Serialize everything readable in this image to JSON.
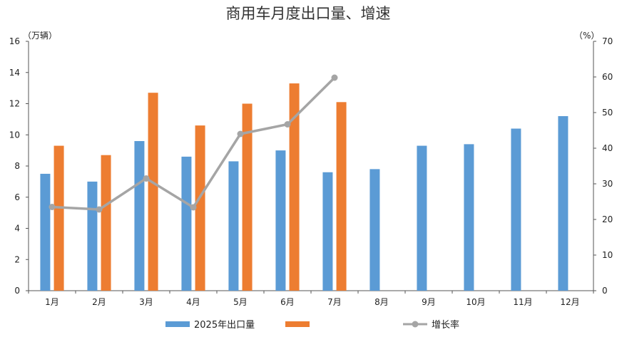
{
  "chart_data": {
    "type": "bar",
    "title": "商用车月度出口量、增速",
    "left_unit": "（万辆）",
    "right_unit": "（%）",
    "categories": [
      "1月",
      "2月",
      "3月",
      "4月",
      "5月",
      "6月",
      "7月",
      "8月",
      "9月",
      "10月",
      "11月",
      "12月"
    ],
    "y_left": {
      "min": 0,
      "max": 16,
      "ticks": [
        "0",
        "2",
        "4",
        "6",
        "8",
        "10",
        "12",
        "14",
        "16"
      ]
    },
    "y_right": {
      "min": 0,
      "max": 70,
      "ticks": [
        "0",
        "10",
        "20",
        "30",
        "40",
        "50",
        "60",
        "70"
      ]
    },
    "series": [
      {
        "name": "2025年出口量",
        "type": "bar",
        "axis": "left",
        "color": "#5B9BD5",
        "values": [
          7.5,
          7.0,
          9.6,
          8.6,
          8.3,
          9.0,
          7.6,
          7.8,
          9.3,
          9.4,
          10.4,
          11.2
        ]
      },
      {
        "name": "",
        "type": "bar",
        "axis": "left",
        "color": "#ED7D31",
        "values": [
          9.3,
          8.7,
          12.7,
          10.6,
          12.0,
          13.3,
          12.1,
          null,
          null,
          null,
          null,
          null
        ]
      },
      {
        "name": "增长率",
        "type": "line",
        "axis": "right",
        "color": "#A5A5A5",
        "values": [
          23.5,
          22.8,
          31.5,
          23.4,
          44.0,
          46.7,
          59.8,
          null,
          null,
          null,
          null,
          null
        ]
      }
    ],
    "legend": {
      "position": "bottom",
      "items": [
        "2025年出口量",
        "",
        "增长率"
      ]
    }
  }
}
